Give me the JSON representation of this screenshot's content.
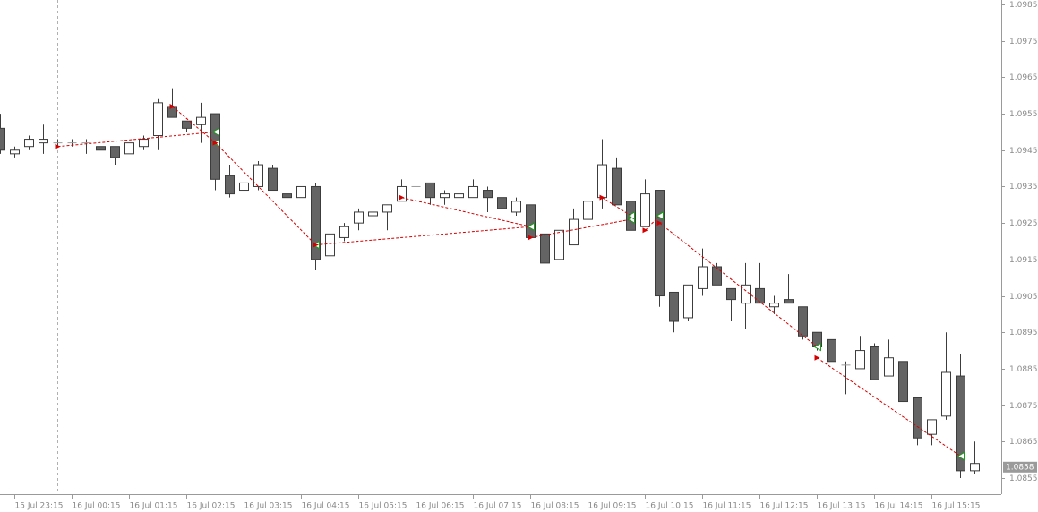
{
  "chart_data": {
    "type": "candlestick",
    "categories": [
      null,
      "15 Jul 23:15",
      null,
      null,
      null,
      "16 Jul 00:15",
      null,
      null,
      null,
      "16 Jul 01:15",
      null,
      null,
      null,
      "16 Jul 02:15",
      null,
      null,
      null,
      "16 Jul 03:15",
      null,
      null,
      null,
      "16 Jul 04:15",
      null,
      null,
      null,
      "16 Jul 05:15",
      null,
      null,
      null,
      "16 Jul 06:15",
      null,
      null,
      null,
      "16 Jul 07:15",
      null,
      null,
      null,
      "16 Jul 08:15",
      null,
      null,
      null,
      "16 Jul 09:15",
      null,
      null,
      null,
      "16 Jul 10:15",
      null,
      null,
      null,
      "16 Jul 11:15",
      null,
      null,
      null,
      "16 Jul 12:15",
      null,
      null,
      null,
      "16 Jul 13:15",
      null,
      null,
      null,
      "16 Jul 14:15",
      null,
      null,
      null,
      "16 Jul 15:15",
      null,
      null,
      null
    ],
    "open": [
      1.0951,
      1.0944,
      1.0946,
      1.0947,
      1.0947,
      1.0947,
      1.0947,
      1.0946,
      1.0946,
      1.0944,
      1.0946,
      1.0949,
      1.0957,
      1.0953,
      1.0952,
      1.0955,
      1.0938,
      1.0934,
      1.0935,
      1.094,
      1.0933,
      1.0932,
      1.0935,
      1.0916,
      1.0921,
      1.0925,
      1.0927,
      1.0928,
      1.0931,
      1.0935,
      1.0936,
      1.0932,
      1.0932,
      1.0932,
      1.0934,
      1.0932,
      1.0928,
      1.093,
      1.0922,
      1.0915,
      1.0919,
      1.0926,
      1.0932,
      1.094,
      1.0931,
      1.0924,
      1.0934,
      1.0906,
      1.0899,
      1.0907,
      1.0913,
      1.0907,
      1.0903,
      1.0907,
      1.0902,
      1.0904,
      1.0902,
      1.0895,
      1.0893,
      1.0886,
      1.0885,
      1.0891,
      1.0883,
      1.0887,
      1.0877,
      1.0867,
      1.0872,
      1.0883,
      1.0857
    ],
    "high": [
      1.0955,
      1.0946,
      1.0949,
      1.0952,
      1.0948,
      1.0948,
      1.0948,
      1.0946,
      1.0946,
      1.0947,
      1.0949,
      1.0959,
      1.0962,
      1.0953,
      1.0958,
      1.0955,
      1.0941,
      1.0938,
      1.0942,
      1.0941,
      1.0933,
      1.0935,
      1.0936,
      1.0924,
      1.0925,
      1.0929,
      1.093,
      1.093,
      1.0937,
      1.0937,
      1.0936,
      1.0934,
      1.0935,
      1.0937,
      1.0935,
      1.0932,
      1.0932,
      1.093,
      1.0922,
      1.0923,
      1.0929,
      1.0931,
      1.0948,
      1.0943,
      1.0938,
      1.0937,
      1.0934,
      1.0906,
      1.0908,
      1.0918,
      1.0914,
      1.0907,
      1.0914,
      1.0914,
      1.0905,
      1.0911,
      1.0902,
      1.0895,
      1.0893,
      1.0887,
      1.0894,
      1.0892,
      1.0893,
      1.0887,
      1.0877,
      1.0871,
      1.0895,
      1.0889,
      1.0865
    ],
    "low": [
      1.0944,
      1.0943,
      1.0945,
      1.0944,
      1.0946,
      1.0946,
      1.0944,
      1.0945,
      1.0941,
      1.0944,
      1.0945,
      1.0945,
      1.0954,
      1.095,
      1.0947,
      1.0934,
      1.0932,
      1.0932,
      1.0934,
      1.0934,
      1.0931,
      1.0932,
      1.0912,
      1.0916,
      1.092,
      1.0923,
      1.0926,
      1.0923,
      1.0931,
      1.0934,
      1.093,
      1.093,
      1.0931,
      1.0932,
      1.0928,
      1.0927,
      1.0927,
      1.0921,
      1.091,
      1.0915,
      1.0919,
      1.0924,
      1.0929,
      1.093,
      1.0923,
      1.0924,
      1.0902,
      1.0895,
      1.0898,
      1.0905,
      1.0908,
      1.0898,
      1.0896,
      1.0903,
      1.09,
      1.0903,
      1.0893,
      1.089,
      1.0887,
      1.0878,
      1.0885,
      1.0882,
      1.0883,
      1.0876,
      1.0864,
      1.0864,
      1.0871,
      1.0855,
      1.0856
    ],
    "close": [
      1.0945,
      1.0945,
      1.0948,
      1.0948,
      1.0947,
      1.0947,
      1.0947,
      1.0945,
      1.0943,
      1.0947,
      1.0948,
      1.0958,
      1.0954,
      1.0951,
      1.0954,
      1.0937,
      1.0933,
      1.0936,
      1.0941,
      1.0934,
      1.0932,
      1.0935,
      1.0915,
      1.0922,
      1.0924,
      1.0928,
      1.0928,
      1.093,
      1.0935,
      1.0935,
      1.0932,
      1.0933,
      1.0933,
      1.0935,
      1.0932,
      1.0929,
      1.0931,
      1.0921,
      1.0914,
      1.0923,
      1.0926,
      1.0931,
      1.0941,
      1.093,
      1.0923,
      1.0933,
      1.0905,
      1.0898,
      1.0908,
      1.0913,
      1.0908,
      1.0904,
      1.0908,
      1.0903,
      1.0903,
      1.0903,
      1.0894,
      1.0891,
      1.0887,
      1.0886,
      1.089,
      1.0882,
      1.0888,
      1.0876,
      1.0866,
      1.0871,
      1.0884,
      1.0857,
      1.0859
    ],
    "up_color": "#ffffff",
    "down_color": "#646464",
    "edge_color": "#3c3c3c",
    "trades": [
      {
        "entry_index": 4,
        "entry_price": 1.0946,
        "exit_index": 15,
        "exit_price": 1.095
      },
      {
        "entry_index": 12,
        "entry_price": 1.0957,
        "exit_index": 15,
        "exit_price": 1.0947
      },
      {
        "entry_index": 15,
        "entry_price": 1.0947,
        "exit_index": 22,
        "exit_price": 1.0919
      },
      {
        "entry_index": 22,
        "entry_price": 1.0919,
        "exit_index": 37,
        "exit_price": 1.0924
      },
      {
        "entry_index": 28,
        "entry_price": 1.0932,
        "exit_index": 37,
        "exit_price": 1.0924
      },
      {
        "entry_index": 37,
        "entry_price": 1.0921,
        "exit_index": 44,
        "exit_price": 1.0926
      },
      {
        "entry_index": 42,
        "entry_price": 1.0932,
        "exit_index": 44,
        "exit_price": 1.0927
      },
      {
        "entry_index": 45,
        "entry_price": 1.0923,
        "exit_index": 46,
        "exit_price": 1.0927
      },
      {
        "entry_index": 46,
        "entry_price": 1.0925,
        "exit_index": 57,
        "exit_price": 1.0891
      },
      {
        "entry_index": 57,
        "entry_price": 1.0888,
        "exit_index": 67,
        "exit_price": 1.0861
      }
    ],
    "trade_color": "#d40000",
    "last_price": 1.0858,
    "ylim": [
      1.0855,
      1.0985
    ],
    "yticks": [
      1.0855,
      1.0865,
      1.0875,
      1.0885,
      1.0895,
      1.0905,
      1.0915,
      1.0925,
      1.0935,
      1.0945,
      1.0955,
      1.0965,
      1.0975,
      1.0985
    ]
  }
}
